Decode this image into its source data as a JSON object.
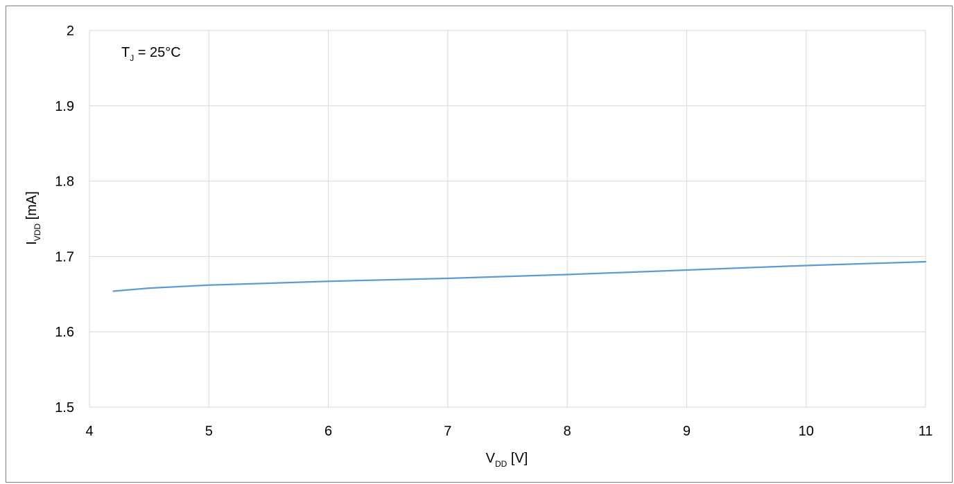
{
  "chart_data": {
    "type": "line",
    "title": "",
    "annotation": {
      "main": "T",
      "sub": "J",
      "rest": " = 25°C"
    },
    "xlabel": {
      "main": "V",
      "sub": "DD",
      "rest": " [V]"
    },
    "ylabel": {
      "main": "I",
      "sub": "VDD",
      "rest": " [mA]"
    },
    "xlim": [
      4,
      11
    ],
    "ylim": [
      1.5,
      2
    ],
    "xticks": [
      "4",
      "5",
      "6",
      "7",
      "8",
      "9",
      "10",
      "11"
    ],
    "yticks": [
      "1.5",
      "1.6",
      "1.7",
      "1.8",
      "1.9",
      "2"
    ],
    "grid": true,
    "colors": {
      "series": "#5b9bd5",
      "grid": "#d9d9d9",
      "frame": "#7f7f7f"
    },
    "series": [
      {
        "x": [
          4.2,
          4.5,
          5,
          6,
          7,
          8,
          9,
          10,
          11
        ],
        "y": [
          1.654,
          1.658,
          1.662,
          1.667,
          1.671,
          1.676,
          1.682,
          1.688,
          1.693
        ]
      }
    ]
  }
}
